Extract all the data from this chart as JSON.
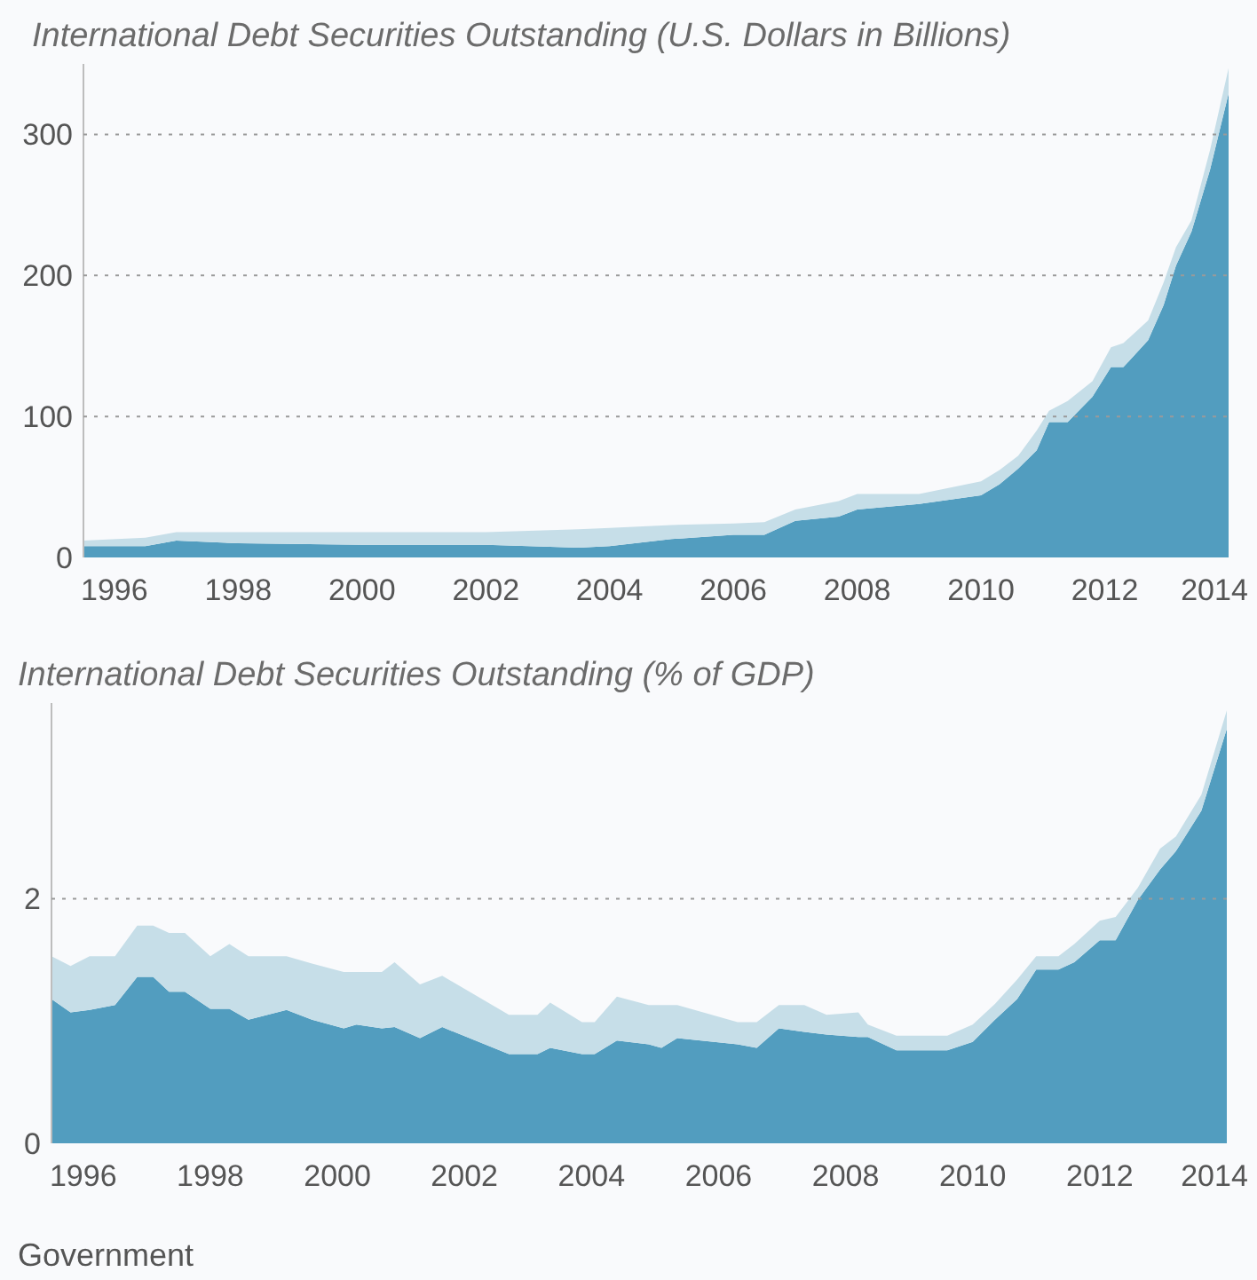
{
  "chart_data": [
    {
      "type": "area",
      "title": "International Debt Securities Outstanding (U.S. Dollars in Billions)",
      "stacked": true,
      "grid": "y",
      "x": [
        1995.5,
        1996.5,
        1997,
        1998,
        2000,
        2002,
        2003.5,
        2004,
        2005,
        2006,
        2006.5,
        2007,
        2007.7,
        2008,
        2009,
        2010,
        2010.3,
        2010.6,
        2010.9,
        2011.1,
        2011.4,
        2011.8,
        2012.1,
        2012.3,
        2012.7,
        2012.95,
        2013.15,
        2013.4,
        2013.7,
        2014
      ],
      "series": [
        {
          "color": "#529dbf",
          "values": [
            8,
            8,
            12,
            10,
            9,
            9,
            7,
            8,
            13,
            16,
            16,
            26,
            29,
            34,
            38,
            44,
            52,
            63,
            76,
            96,
            96,
            114,
            135,
            135,
            154,
            179,
            207,
            231,
            275,
            329
          ]
        },
        {
          "color": "#c6dee8",
          "values": [
            4,
            6,
            6,
            8,
            9,
            9,
            13,
            13,
            10,
            8,
            9,
            8,
            11,
            11,
            7,
            10,
            10,
            9,
            14,
            8,
            15,
            11,
            14,
            17,
            14,
            16,
            13,
            8,
            14,
            18
          ]
        }
      ],
      "xlim": [
        1995.5,
        2014
      ],
      "xticks": [
        1996,
        1998,
        2000,
        2002,
        2004,
        2006,
        2008,
        2010,
        2012,
        2014
      ],
      "ylim": [
        0,
        350
      ],
      "yticks": [
        0,
        100,
        200,
        300
      ]
    },
    {
      "type": "area",
      "title": "International Debt Securities Outstanding (% of GDP)",
      "stacked": true,
      "grid": "y",
      "x": [
        1995.5,
        1995.8,
        1996.1,
        1996.5,
        1996.85,
        1997.1,
        1997.35,
        1997.6,
        1998,
        1998.3,
        1998.6,
        1999.2,
        1999.6,
        2000.1,
        2000.3,
        2000.7,
        2000.9,
        2001.3,
        2001.65,
        2002.7,
        2003.15,
        2003.35,
        2003.85,
        2004.05,
        2004.4,
        2004.9,
        2005.1,
        2005.35,
        2006.3,
        2006.6,
        2006.95,
        2007.35,
        2007.7,
        2008.2,
        2008.35,
        2008.8,
        2009.6,
        2010,
        2010.35,
        2010.7,
        2011,
        2011.35,
        2011.6,
        2012,
        2012.25,
        2012.6,
        2012.95,
        2013.2,
        2013.6,
        2014
      ],
      "series": [
        {
          "color": "#529dbf",
          "values": [
            1.18,
            1.07,
            1.09,
            1.13,
            1.36,
            1.36,
            1.24,
            1.24,
            1.1,
            1.1,
            1.01,
            1.09,
            1.01,
            0.94,
            0.97,
            0.94,
            0.95,
            0.86,
            0.95,
            0.73,
            0.73,
            0.78,
            0.73,
            0.73,
            0.84,
            0.81,
            0.78,
            0.86,
            0.81,
            0.78,
            0.94,
            0.91,
            0.89,
            0.87,
            0.87,
            0.76,
            0.76,
            0.83,
            1.01,
            1.18,
            1.42,
            1.42,
            1.48,
            1.66,
            1.66,
            1.99,
            2.24,
            2.39,
            2.72,
            3.39
          ]
        },
        {
          "color": "#c6dee8",
          "values": [
            0.35,
            0.38,
            0.44,
            0.4,
            0.42,
            0.42,
            0.48,
            0.48,
            0.43,
            0.53,
            0.52,
            0.44,
            0.46,
            0.46,
            0.43,
            0.46,
            0.53,
            0.44,
            0.42,
            0.32,
            0.32,
            0.37,
            0.26,
            0.26,
            0.36,
            0.32,
            0.35,
            0.27,
            0.18,
            0.21,
            0.19,
            0.22,
            0.16,
            0.2,
            0.1,
            0.12,
            0.12,
            0.14,
            0.13,
            0.16,
            0.11,
            0.11,
            0.15,
            0.16,
            0.19,
            0.1,
            0.17,
            0.12,
            0.13,
            0.15
          ]
        }
      ],
      "xlim": [
        1995.5,
        2014
      ],
      "xticks": [
        1996,
        1998,
        2000,
        2002,
        2004,
        2006,
        2008,
        2010,
        2012,
        2014
      ],
      "ylim": [
        0,
        3.6
      ],
      "yticks": [
        0,
        2
      ],
      "annotations": [
        "Government"
      ]
    }
  ]
}
